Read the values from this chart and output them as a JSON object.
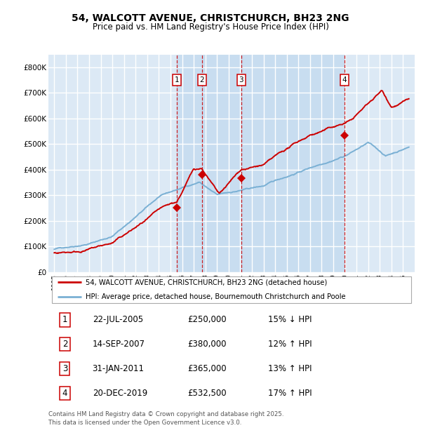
{
  "title": "54, WALCOTT AVENUE, CHRISTCHURCH, BH23 2NG",
  "subtitle": "Price paid vs. HM Land Registry's House Price Index (HPI)",
  "background_color": "#dce9f5",
  "grid_color": "#ffffff",
  "red_line_color": "#cc0000",
  "blue_line_color": "#7ab0d4",
  "sale_marker_color": "#cc0000",
  "vline_color": "#cc0000",
  "ylim": [
    0,
    850000
  ],
  "yticks": [
    0,
    100000,
    200000,
    300000,
    400000,
    500000,
    600000,
    700000,
    800000
  ],
  "ytick_labels": [
    "£0",
    "£100K",
    "£200K",
    "£300K",
    "£400K",
    "£500K",
    "£600K",
    "£700K",
    "£800K"
  ],
  "sales": [
    {
      "num": 1,
      "date_x": 2005.55,
      "price": 250000,
      "label": "22-JUL-2005",
      "pct": "15% ↓ HPI"
    },
    {
      "num": 2,
      "date_x": 2007.71,
      "price": 380000,
      "label": "14-SEP-2007",
      "pct": "12% ↑ HPI"
    },
    {
      "num": 3,
      "date_x": 2011.08,
      "price": 365000,
      "label": "31-JAN-2011",
      "pct": "13% ↑ HPI"
    },
    {
      "num": 4,
      "date_x": 2019.97,
      "price": 532500,
      "label": "20-DEC-2019",
      "pct": "17% ↑ HPI"
    }
  ],
  "legend_line1": "54, WALCOTT AVENUE, CHRISTCHURCH, BH23 2NG (detached house)",
  "legend_line2": "HPI: Average price, detached house, Bournemouth Christchurch and Poole",
  "footer": "Contains HM Land Registry data © Crown copyright and database right 2025.\nThis data is licensed under the Open Government Licence v3.0.",
  "table_rows": [
    [
      "1",
      "22-JUL-2005",
      "£250,000",
      "15% ↓ HPI"
    ],
    [
      "2",
      "14-SEP-2007",
      "£380,000",
      "12% ↑ HPI"
    ],
    [
      "3",
      "31-JAN-2011",
      "£365,000",
      "13% ↑ HPI"
    ],
    [
      "4",
      "20-DEC-2019",
      "£532,500",
      "17% ↑ HPI"
    ]
  ],
  "xlim": [
    1994.5,
    2026.0
  ],
  "xtick_years": [
    1995,
    1996,
    1997,
    1998,
    1999,
    2000,
    2001,
    2002,
    2003,
    2004,
    2005,
    2006,
    2007,
    2008,
    2009,
    2010,
    2011,
    2012,
    2013,
    2014,
    2015,
    2016,
    2017,
    2018,
    2019,
    2020,
    2021,
    2022,
    2023,
    2024,
    2025
  ]
}
